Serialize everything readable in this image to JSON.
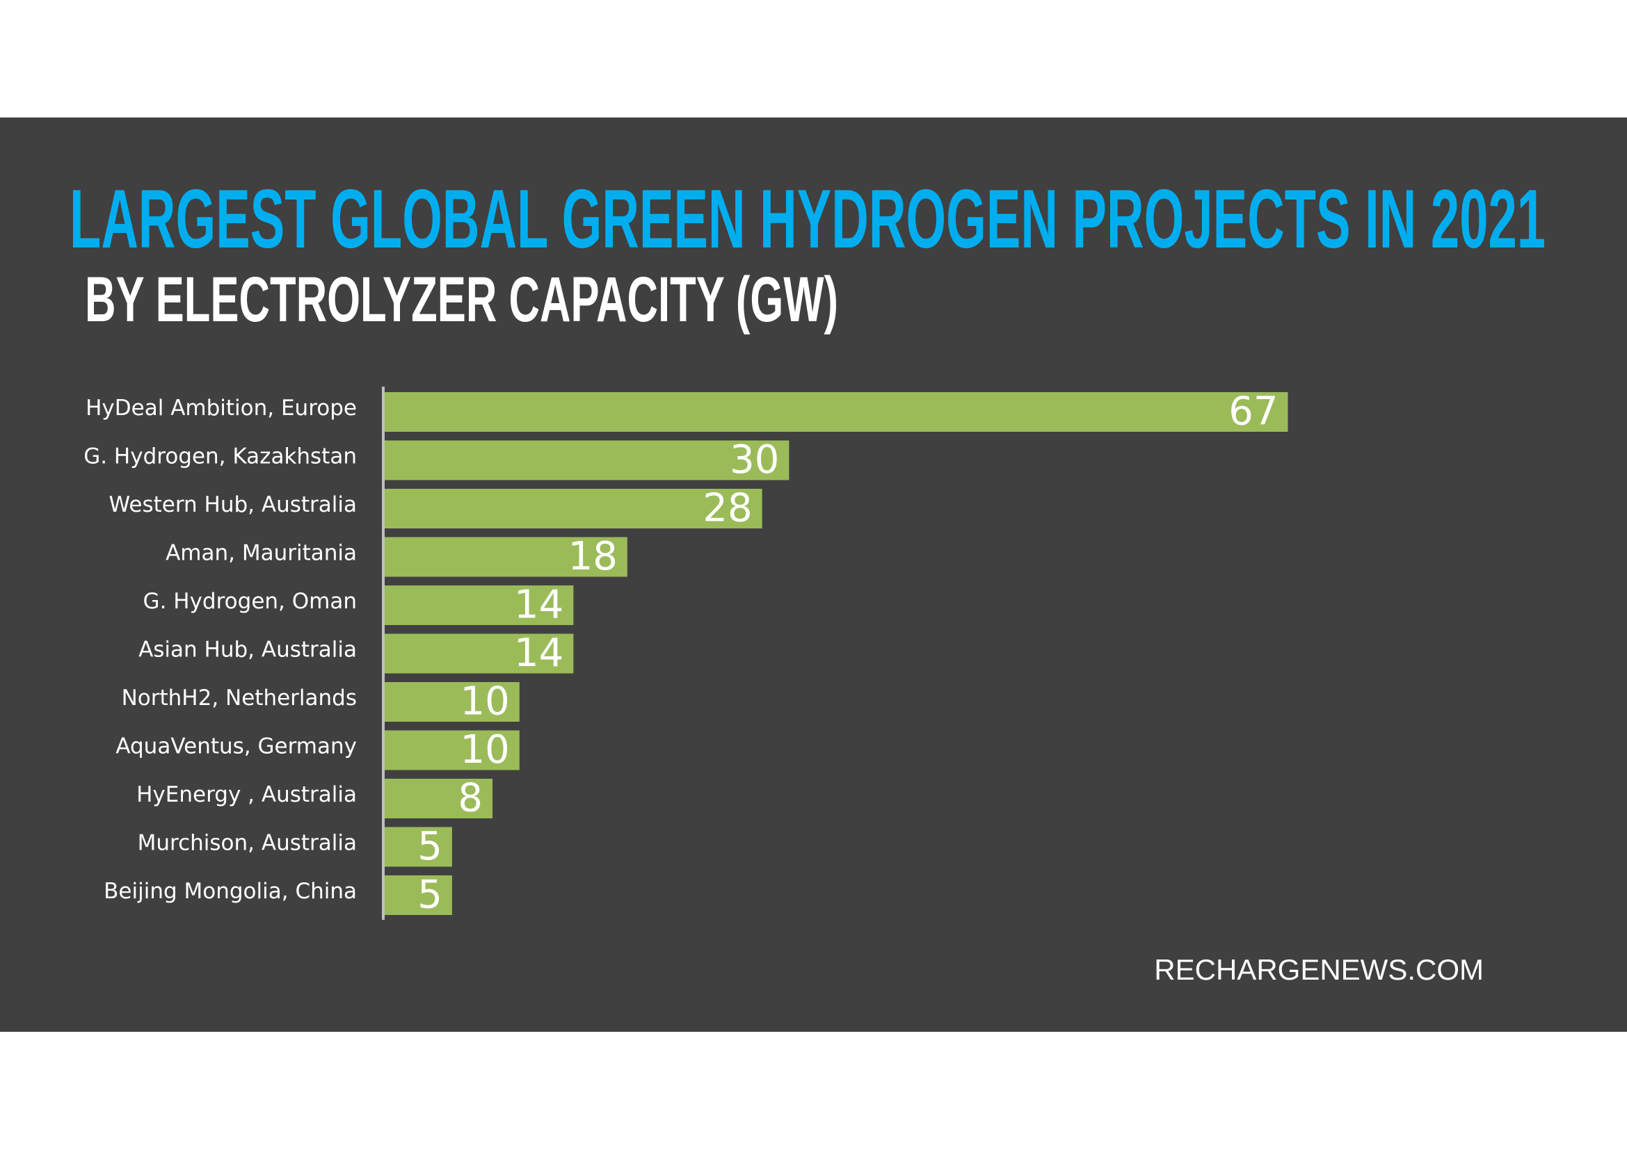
{
  "chart_data": {
    "type": "bar",
    "title": "LARGEST GLOBAL GREEN HYDROGEN PROJECTS IN 2021",
    "subtitle": "BY ELECTROLYZER CAPACITY (GW)",
    "categories": [
      "HyDeal Ambition, Europe",
      "G. Hydrogen, Kazakhstan",
      "Western Hub, Australia",
      "Aman, Mauritania",
      "G. Hydrogen, Oman",
      "Asian Hub, Australia",
      "NorthH2, Netherlands",
      "AquaVentus, Germany",
      "HyEnergy , Australia",
      "Murchison, Australia",
      "Beijing Mongolia, China"
    ],
    "values": [
      67,
      30,
      28,
      18,
      14,
      14,
      10,
      10,
      8,
      5,
      5
    ],
    "color": "#9bbb59",
    "source": "RECHARGENEWS.COM"
  }
}
